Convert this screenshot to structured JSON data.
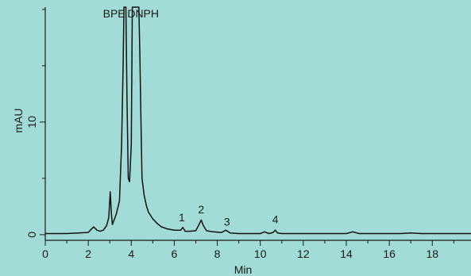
{
  "chart_data": {
    "type": "line",
    "xlabel": "Min",
    "ylabel": "mAU",
    "xlim": [
      0,
      19.8
    ],
    "ylim": [
      -0.5,
      20.2
    ],
    "x_ticks": [
      0,
      2,
      4,
      6,
      8,
      10,
      12,
      14,
      16,
      18
    ],
    "y_ticks": [
      0,
      10
    ],
    "grid": false,
    "colors": {
      "background": "#a2dcd6",
      "trace": "#111111"
    },
    "series": [
      {
        "x": [
          0,
          1,
          2,
          2.1,
          2.25,
          2.4,
          2.55,
          2.7,
          2.85,
          2.95,
          3.02,
          3.07,
          3.12,
          3.18,
          3.3,
          3.45,
          3.55,
          3.62,
          3.66,
          3.7,
          3.75,
          3.8,
          3.86,
          3.92,
          4.0,
          4.05,
          4.1,
          4.15,
          4.2,
          4.25,
          4.3,
          4.35,
          4.4,
          4.45,
          4.5,
          4.6,
          4.7,
          4.8,
          5.0,
          5.2,
          5.4,
          5.7,
          6.0,
          6.3,
          6.4,
          6.5,
          6.7,
          7.0,
          7.15,
          7.25,
          7.35,
          7.5,
          7.8,
          8.2,
          8.4,
          8.6,
          9.0,
          9.5,
          10.0,
          10.2,
          10.4,
          10.6,
          10.7,
          10.8,
          11.0,
          12.0,
          13.0,
          14.0,
          14.3,
          14.6,
          15.5,
          16.5,
          17.0,
          17.5,
          18.5,
          19.8
        ],
        "y": [
          0.1,
          0.1,
          0.2,
          0.4,
          0.7,
          0.4,
          0.3,
          0.4,
          0.8,
          1.5,
          3.8,
          2.0,
          0.9,
          1.2,
          1.8,
          3.0,
          8.0,
          15.0,
          20.2,
          20.2,
          20.2,
          12.0,
          5.0,
          4.7,
          8.0,
          20.2,
          20.2,
          20.2,
          20.2,
          20.2,
          20.2,
          20.2,
          16.0,
          10.0,
          5.0,
          3.5,
          2.6,
          2.0,
          1.4,
          1.0,
          0.7,
          0.5,
          0.4,
          0.4,
          0.65,
          0.3,
          0.3,
          0.35,
          0.9,
          1.3,
          0.8,
          0.35,
          0.25,
          0.2,
          0.4,
          0.15,
          0.1,
          0.1,
          0.1,
          0.25,
          0.1,
          0.2,
          0.4,
          0.15,
          0.1,
          0.1,
          0.1,
          0.1,
          0.25,
          0.1,
          0.1,
          0.1,
          0.15,
          0.1,
          0.1,
          0.1
        ]
      }
    ],
    "annotations": [
      {
        "text": "BPE",
        "x": 3.2,
        "y": 19.3
      },
      {
        "text": "DNPH",
        "x": 4.55,
        "y": 19.3
      },
      {
        "text": "1",
        "x": 6.35,
        "y": 1.2
      },
      {
        "text": "2",
        "x": 7.25,
        "y": 1.9
      },
      {
        "text": "3",
        "x": 8.45,
        "y": 0.8
      },
      {
        "text": "4",
        "x": 10.7,
        "y": 1.0
      }
    ]
  }
}
